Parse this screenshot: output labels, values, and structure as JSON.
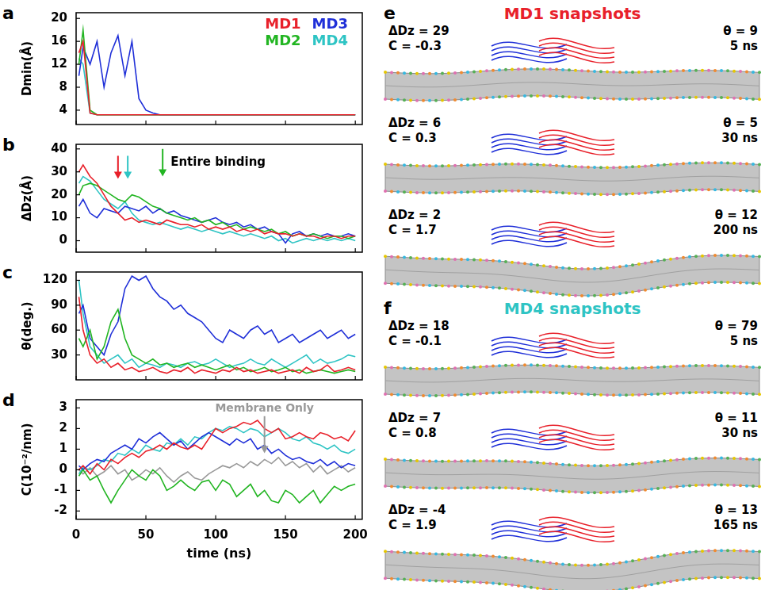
{
  "chart_data": [
    {
      "type": "line",
      "letter": "a",
      "ylabel": "Dmin(Å)",
      "grid": false,
      "tick_labels": "y",
      "legend": "top-right",
      "xlim": [
        0,
        205
      ],
      "xticks": [
        0,
        50,
        100,
        150,
        200
      ],
      "ylim": [
        1.5,
        21
      ],
      "yticks": [
        4,
        8,
        12,
        16,
        20
      ],
      "x": [
        2,
        5,
        10,
        15,
        20,
        25,
        30,
        35,
        40,
        45,
        50,
        55,
        60,
        65,
        70,
        75,
        80,
        85,
        90,
        95,
        100,
        105,
        110,
        115,
        120,
        125,
        130,
        135,
        140,
        145,
        150,
        155,
        160,
        165,
        170,
        175,
        180,
        185,
        190,
        195,
        200
      ],
      "series": [
        {
          "name": "MD1",
          "color": "#e8202a",
          "values": [
            14,
            16,
            3.5,
            3.2,
            3.2,
            3.2,
            3.2,
            3.2,
            3.2,
            3.2,
            3.2,
            3.2,
            3.2,
            3.2,
            3.2,
            3.2,
            3.2,
            3.2,
            3.2,
            3.2,
            3.2,
            3.2,
            3.2,
            3.2,
            3.2,
            3.2,
            3.2,
            3.2,
            3.2,
            3.2,
            3.2,
            3.2,
            3.2,
            3.2,
            3.2,
            3.2,
            3.2,
            3.2,
            3.2,
            3.2,
            3.2
          ]
        },
        {
          "name": "MD2",
          "color": "#22b522",
          "values": [
            12,
            18,
            4,
            3.2,
            3.2,
            3.2,
            3.2,
            3.2,
            3.2,
            3.2,
            3.2,
            3.2,
            3.2,
            3.2,
            3.2,
            3.2,
            3.2,
            3.2,
            3.2,
            3.2,
            3.2,
            3.2,
            3.2,
            3.2,
            3.2,
            3.2,
            3.2,
            3.2,
            3.2,
            3.2,
            3.2,
            3.2,
            3.2,
            3.2,
            3.2,
            3.2,
            3.2,
            3.2,
            3.2,
            3.2,
            3.2
          ]
        },
        {
          "name": "MD3",
          "color": "#1f2fd8",
          "values": [
            10,
            15,
            12,
            16,
            8,
            14,
            17,
            10,
            16,
            6,
            4,
            3.5,
            3.2,
            3.2,
            3.2,
            3.2,
            3.2,
            3.2,
            3.2,
            3.2,
            3.2,
            3.2,
            3.2,
            3.2,
            3.2,
            3.2,
            3.2,
            3.2,
            3.2,
            3.2,
            3.2,
            3.2,
            3.2,
            3.2,
            3.2,
            3.2,
            3.2,
            3.2,
            3.2,
            3.2,
            3.2
          ]
        },
        {
          "name": "MD4",
          "color": "#2ec4c4",
          "values": [
            13,
            12,
            3.5,
            3.2,
            3.2,
            3.2,
            3.2,
            3.2,
            3.2,
            3.2,
            3.2,
            3.2,
            3.2,
            3.2,
            3.2,
            3.2,
            3.2,
            3.2,
            3.2,
            3.2,
            3.2,
            3.2,
            3.2,
            3.2,
            3.2,
            3.2,
            3.2,
            3.2,
            3.2,
            3.2,
            3.2,
            3.2,
            3.2,
            3.2,
            3.2,
            3.2,
            3.2,
            3.2,
            3.2,
            3.2,
            3.2
          ]
        }
      ]
    },
    {
      "type": "line",
      "letter": "b",
      "ylabel": "ΔDz(Å)",
      "grid": false,
      "tick_labels": "y",
      "xlim": [
        0,
        205
      ],
      "xticks": [
        0,
        50,
        100,
        150,
        200
      ],
      "ylim": [
        -5,
        42
      ],
      "yticks": [
        0,
        10,
        20,
        30,
        40
      ],
      "annotation": {
        "text": "Entire binding",
        "arrows": [
          {
            "x": 30,
            "y_from": 37,
            "y_to": 27,
            "color": "#e8202a"
          },
          {
            "x": 37,
            "y_from": 37,
            "y_to": 27,
            "color": "#2ec4c4"
          },
          {
            "x": 62,
            "y_from": 40,
            "y_to": 28,
            "color": "#22b522"
          }
        ]
      },
      "x": [
        2,
        5,
        10,
        15,
        20,
        25,
        30,
        35,
        40,
        45,
        50,
        55,
        60,
        65,
        70,
        75,
        80,
        85,
        90,
        95,
        100,
        105,
        110,
        115,
        120,
        125,
        130,
        135,
        140,
        145,
        150,
        155,
        160,
        165,
        170,
        175,
        180,
        185,
        190,
        195,
        200
      ],
      "series": [
        {
          "name": "MD1",
          "color": "#e8202a",
          "values": [
            30,
            33,
            28,
            25,
            20,
            15,
            12,
            9,
            10,
            8,
            9,
            8,
            7,
            9,
            8,
            7,
            7,
            6,
            7,
            5,
            6,
            5,
            6,
            4,
            5,
            4,
            5,
            3,
            4,
            3,
            3,
            2,
            3,
            2,
            2,
            1,
            2,
            2,
            1,
            2,
            2
          ]
        },
        {
          "name": "MD2",
          "color": "#22b522",
          "values": [
            20,
            24,
            25,
            24,
            22,
            20,
            18,
            17,
            20,
            19,
            17,
            15,
            14,
            12,
            11,
            10,
            9,
            10,
            8,
            9,
            7,
            8,
            6,
            7,
            5,
            6,
            5,
            4,
            5,
            3,
            4,
            2,
            3,
            2,
            3,
            2,
            1,
            2,
            2,
            1,
            2
          ]
        },
        {
          "name": "MD3",
          "color": "#1f2fd8",
          "values": [
            15,
            18,
            12,
            10,
            14,
            13,
            12,
            15,
            14,
            13,
            15,
            12,
            14,
            12,
            13,
            11,
            10,
            9,
            8,
            9,
            10,
            8,
            7,
            8,
            6,
            7,
            5,
            6,
            4,
            3,
            -1,
            3,
            4,
            2,
            3,
            2,
            3,
            2,
            2,
            3,
            2
          ]
        },
        {
          "name": "MD4",
          "color": "#2ec4c4",
          "values": [
            25,
            28,
            26,
            22,
            18,
            16,
            14,
            17,
            12,
            9,
            8,
            7,
            8,
            7,
            6,
            5,
            6,
            5,
            4,
            5,
            4,
            3,
            4,
            3,
            2,
            3,
            2,
            1,
            2,
            0,
            1,
            -1,
            0,
            1,
            0,
            1,
            0,
            1,
            0,
            1,
            0
          ]
        }
      ]
    },
    {
      "type": "line",
      "letter": "c",
      "ylabel": "θ(deg.)",
      "grid": false,
      "tick_labels": "y",
      "xlim": [
        0,
        205
      ],
      "xticks": [
        0,
        50,
        100,
        150,
        200
      ],
      "ylim": [
        0,
        130
      ],
      "yticks": [
        30,
        60,
        90,
        120
      ],
      "x": [
        2,
        5,
        10,
        15,
        20,
        25,
        30,
        35,
        40,
        45,
        50,
        55,
        60,
        65,
        70,
        75,
        80,
        85,
        90,
        95,
        100,
        105,
        110,
        115,
        120,
        125,
        130,
        135,
        140,
        145,
        150,
        155,
        160,
        165,
        170,
        175,
        180,
        185,
        190,
        195,
        200
      ],
      "series": [
        {
          "name": "MD1",
          "color": "#e8202a",
          "values": [
            100,
            60,
            30,
            20,
            25,
            15,
            20,
            12,
            15,
            10,
            12,
            15,
            10,
            8,
            12,
            10,
            15,
            8,
            12,
            10,
            8,
            12,
            10,
            15,
            10,
            12,
            8,
            10,
            12,
            8,
            10,
            12,
            8,
            15,
            10,
            12,
            18,
            10,
            12,
            15,
            12
          ]
        },
        {
          "name": "MD2",
          "color": "#22b522",
          "values": [
            50,
            40,
            60,
            25,
            40,
            70,
            85,
            50,
            30,
            25,
            20,
            25,
            18,
            20,
            15,
            18,
            20,
            15,
            18,
            15,
            12,
            15,
            18,
            12,
            15,
            10,
            12,
            15,
            10,
            12,
            15,
            10,
            12,
            8,
            10,
            12,
            10,
            8,
            10,
            12,
            10
          ]
        },
        {
          "name": "MD3",
          "color": "#1f2fd8",
          "values": [
            80,
            90,
            50,
            40,
            30,
            55,
            70,
            110,
            125,
            120,
            125,
            110,
            100,
            95,
            85,
            90,
            80,
            75,
            70,
            60,
            50,
            45,
            60,
            55,
            50,
            60,
            65,
            55,
            60,
            45,
            50,
            55,
            45,
            50,
            55,
            60,
            50,
            55,
            60,
            50,
            55
          ]
        },
        {
          "name": "MD4",
          "color": "#2ec4c4",
          "values": [
            120,
            80,
            40,
            30,
            20,
            25,
            30,
            20,
            25,
            15,
            20,
            18,
            15,
            20,
            18,
            15,
            20,
            22,
            18,
            20,
            25,
            20,
            15,
            18,
            20,
            25,
            20,
            18,
            25,
            20,
            15,
            20,
            25,
            30,
            20,
            25,
            20,
            22,
            25,
            30,
            28
          ]
        }
      ]
    },
    {
      "type": "line",
      "letter": "d",
      "ylabel": "C(10⁻²/nm)",
      "xlabel": "time (ns)",
      "grid": false,
      "xlim": [
        0,
        205
      ],
      "xticks": [
        0,
        50,
        100,
        150,
        200
      ],
      "ylim": [
        -2.4,
        3.4
      ],
      "yticks": [
        -2,
        -1,
        0,
        1,
        2,
        3
      ],
      "x": [
        2,
        5,
        10,
        15,
        20,
        25,
        30,
        35,
        40,
        45,
        50,
        55,
        60,
        65,
        70,
        75,
        80,
        85,
        90,
        95,
        100,
        105,
        110,
        115,
        120,
        125,
        130,
        135,
        140,
        145,
        150,
        155,
        160,
        165,
        170,
        175,
        180,
        185,
        190,
        195,
        200
      ],
      "series": [
        {
          "name": "MD1",
          "color": "#e8202a",
          "values": [
            0,
            0.2,
            -0.2,
            0.3,
            0,
            0.5,
            0.3,
            0.6,
            0.8,
            0.6,
            0.9,
            1.0,
            1.2,
            1.0,
            1.3,
            1.1,
            1.0,
            1.2,
            1.0,
            1.5,
            2.0,
            1.8,
            2.0,
            2.1,
            2.3,
            2.2,
            2.4,
            2.0,
            1.8,
            2.0,
            1.5,
            1.6,
            1.8,
            1.6,
            1.5,
            1.8,
            1.7,
            1.5,
            1.6,
            1.4,
            1.9
          ]
        },
        {
          "name": "MD2",
          "color": "#22b522",
          "values": [
            -0.3,
            0,
            -0.5,
            -0.3,
            -1.0,
            -1.6,
            -1.0,
            -0.5,
            0,
            -0.3,
            -0.5,
            0,
            -0.3,
            -1.0,
            -0.8,
            -0.5,
            -0.8,
            -1.0,
            -0.6,
            -0.5,
            -1.0,
            -0.5,
            -0.7,
            -1.3,
            -1.0,
            -0.7,
            -1.3,
            -1.0,
            -1.5,
            -1.6,
            -1.0,
            -1.2,
            -1.6,
            -1.3,
            -1.0,
            -1.6,
            -1.2,
            -0.8,
            -1.0,
            -0.8,
            -0.7
          ]
        },
        {
          "name": "MD3",
          "color": "#1f2fd8",
          "values": [
            0.2,
            0,
            0.3,
            0.5,
            0.4,
            0.8,
            1.0,
            1.2,
            1.0,
            1.5,
            1.3,
            1.6,
            1.8,
            1.5,
            1.2,
            1.4,
            1.0,
            1.3,
            1.6,
            1.8,
            1.6,
            1.4,
            1.2,
            1.5,
            1.3,
            1.5,
            1.0,
            1.2,
            0.8,
            1.0,
            0.7,
            0.5,
            0.6,
            0.4,
            0.3,
            0.5,
            0.2,
            0.4,
            0.1,
            0.3,
            0.2
          ]
        },
        {
          "name": "MD4",
          "color": "#2ec4c4",
          "values": [
            -0.2,
            0.1,
            0,
            0.2,
            0.5,
            0.4,
            0.8,
            0.7,
            1.0,
            0.8,
            1.2,
            1.0,
            0.9,
            1.3,
            1.2,
            1.5,
            1.2,
            1.6,
            1.5,
            1.8,
            2.0,
            1.9,
            2.1,
            2.0,
            1.8,
            2.0,
            1.9,
            1.6,
            1.8,
            2.0,
            1.8,
            1.5,
            1.4,
            1.6,
            1.3,
            1.2,
            1.0,
            1.2,
            0.9,
            0.8,
            1.0
          ]
        },
        {
          "name": "Membrane Only",
          "color": "#999999",
          "arrow": {
            "x": 135,
            "y_from": 2.6,
            "y_to": 0.8
          },
          "values": [
            0,
            -0.2,
            0.1,
            -0.3,
            -0.1,
            0.2,
            -0.2,
            0,
            -0.5,
            -0.3,
            0,
            -0.2,
            0.1,
            -0.3,
            -0.6,
            -0.3,
            -0.1,
            -0.4,
            -0.5,
            -0.2,
            0,
            0.2,
            0.1,
            0.3,
            0.1,
            0.4,
            0.2,
            0.5,
            0.3,
            0.6,
            0.2,
            0.4,
            0.1,
            0.3,
            -0.1,
            0.2,
            -0.2,
            0,
            0.2,
            -0.1,
            0.1
          ]
        }
      ]
    }
  ],
  "snapshot_labels": {
    "dDz": "ΔDz",
    "C": "C",
    "theta": "θ",
    "equals": " = ",
    "time_unit": "ns"
  },
  "snapshot_panels": [
    {
      "letter": "e",
      "title": "MD1 snapshots",
      "color": "#e8202a",
      "snapshots": [
        {
          "dDz": 29,
          "C": -0.3,
          "theta": 9,
          "time": 5
        },
        {
          "dDz": 6,
          "C": 0.3,
          "theta": 5,
          "time": 30
        },
        {
          "dDz": 2,
          "C": 1.7,
          "theta": 12,
          "time": 200
        }
      ]
    },
    {
      "letter": "f",
      "title": "MD4 snapshots",
      "color": "#2ec4c4",
      "snapshots": [
        {
          "dDz": 18,
          "C": -0.1,
          "theta": 79,
          "time": 5
        },
        {
          "dDz": 7,
          "C": 0.8,
          "theta": 11,
          "time": 30
        },
        {
          "dDz": -4,
          "C": 1.9,
          "theta": 13,
          "time": 165
        }
      ]
    }
  ]
}
